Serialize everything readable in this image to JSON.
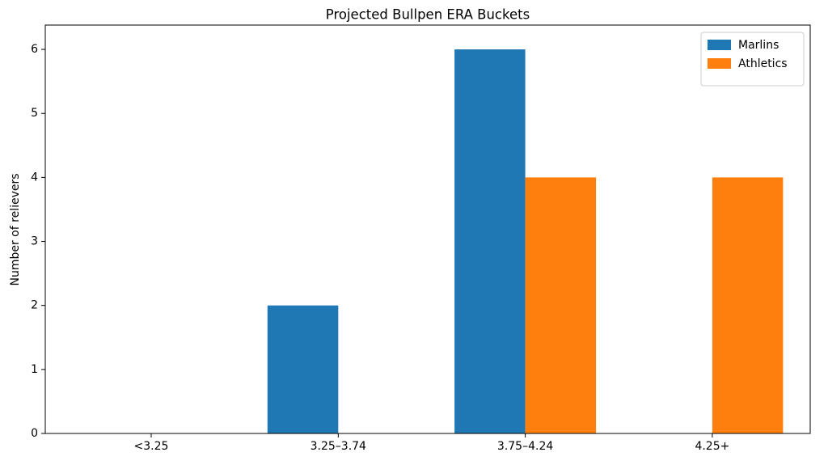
{
  "chart_data": {
    "type": "bar",
    "title": "Projected Bullpen ERA Buckets",
    "y_label": "Number of relievers",
    "categories": [
      "<3.25",
      "3.25–3.74",
      "3.75–4.24",
      "4.25+"
    ],
    "series": [
      {
        "name": "Marlins",
        "color": "#1f77b4",
        "values": [
          0,
          2,
          6,
          0
        ]
      },
      {
        "name": "Athletics",
        "color": "#ff7f0e",
        "values": [
          0,
          0,
          4,
          4
        ]
      }
    ],
    "ylim": [
      0,
      6.38
    ],
    "yticks": [
      0,
      1,
      2,
      3,
      4,
      5,
      6
    ],
    "grid": false,
    "legend": "upper right"
  }
}
